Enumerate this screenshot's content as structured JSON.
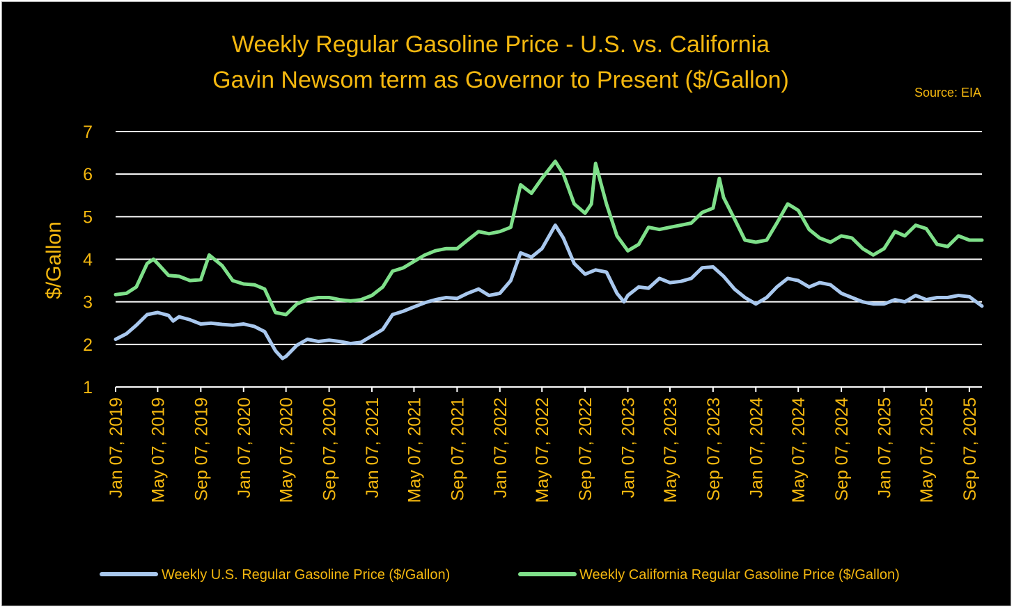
{
  "chart_data": {
    "type": "line",
    "title": "Weekly Regular Gasoline Price - U.S. vs. California",
    "subtitle": "Gavin Newsom term as Governor to Present ($/Gallon)",
    "source": "Source: EIA",
    "ylabel": "$/Gallon",
    "xlabel": "",
    "ylim": [
      1,
      7
    ],
    "yticks": [
      "1",
      "2",
      "3",
      "4",
      "5",
      "6",
      "7"
    ],
    "x_range": [
      "2019-01-07",
      "2025-10-13"
    ],
    "xtick_dates": [
      "2019-01-07",
      "2019-05-07",
      "2019-09-07",
      "2020-01-07",
      "2020-05-07",
      "2020-09-07",
      "2021-01-07",
      "2021-05-07",
      "2021-09-07",
      "2022-01-07",
      "2022-05-07",
      "2022-09-07",
      "2023-01-07",
      "2023-05-07",
      "2023-09-07",
      "2024-01-07",
      "2024-05-07",
      "2024-09-07",
      "2025-01-07",
      "2025-05-07",
      "2025-09-07"
    ],
    "xtick_labels": [
      "Jan 07, 2019",
      "May 07, 2019",
      "Sep 07, 2019",
      "Jan 07, 2020",
      "May 07, 2020",
      "Sep 07, 2020",
      "Jan 07, 2021",
      "May 07, 2021",
      "Sep 07, 2021",
      "Jan 07, 2022",
      "May 07, 2022",
      "Sep 07, 2022",
      "Jan 07, 2023",
      "May 07, 2023",
      "Sep 07, 2023",
      "Jan 07, 2024",
      "May 07, 2024",
      "Sep 07, 2024",
      "Jan 07, 2025",
      "May 07, 2025",
      "Sep 07, 2025"
    ],
    "grid": true,
    "legend_position": "bottom",
    "series": [
      {
        "name": "Weekly U.S. Regular Gasoline Price  ($/Gallon)",
        "color": "#A9C8EE",
        "points": [
          [
            "2019-01-07",
            2.12
          ],
          [
            "2019-02-07",
            2.25
          ],
          [
            "2019-03-07",
            2.45
          ],
          [
            "2019-04-07",
            2.7
          ],
          [
            "2019-05-07",
            2.75
          ],
          [
            "2019-06-07",
            2.68
          ],
          [
            "2019-06-20",
            2.55
          ],
          [
            "2019-07-07",
            2.65
          ],
          [
            "2019-08-07",
            2.58
          ],
          [
            "2019-09-07",
            2.48
          ],
          [
            "2019-10-07",
            2.5
          ],
          [
            "2019-11-07",
            2.47
          ],
          [
            "2019-12-07",
            2.45
          ],
          [
            "2020-01-07",
            2.48
          ],
          [
            "2020-02-07",
            2.42
          ],
          [
            "2020-03-07",
            2.3
          ],
          [
            "2020-04-07",
            1.85
          ],
          [
            "2020-04-27",
            1.67
          ],
          [
            "2020-05-07",
            1.72
          ],
          [
            "2020-06-07",
            1.98
          ],
          [
            "2020-07-07",
            2.12
          ],
          [
            "2020-08-07",
            2.07
          ],
          [
            "2020-09-07",
            2.1
          ],
          [
            "2020-10-07",
            2.07
          ],
          [
            "2020-11-07",
            2.02
          ],
          [
            "2020-12-07",
            2.05
          ],
          [
            "2021-01-07",
            2.2
          ],
          [
            "2021-02-07",
            2.35
          ],
          [
            "2021-03-07",
            2.7
          ],
          [
            "2021-04-07",
            2.78
          ],
          [
            "2021-05-07",
            2.88
          ],
          [
            "2021-06-07",
            2.98
          ],
          [
            "2021-07-07",
            3.05
          ],
          [
            "2021-08-07",
            3.1
          ],
          [
            "2021-09-07",
            3.08
          ],
          [
            "2021-10-07",
            3.2
          ],
          [
            "2021-11-07",
            3.3
          ],
          [
            "2021-12-07",
            3.15
          ],
          [
            "2022-01-07",
            3.2
          ],
          [
            "2022-02-07",
            3.5
          ],
          [
            "2022-03-07",
            4.15
          ],
          [
            "2022-04-07",
            4.05
          ],
          [
            "2022-05-07",
            4.25
          ],
          [
            "2022-06-14",
            4.8
          ],
          [
            "2022-07-07",
            4.5
          ],
          [
            "2022-08-07",
            3.9
          ],
          [
            "2022-09-07",
            3.65
          ],
          [
            "2022-10-07",
            3.75
          ],
          [
            "2022-11-07",
            3.7
          ],
          [
            "2022-12-07",
            3.2
          ],
          [
            "2022-12-27",
            3.0
          ],
          [
            "2023-01-07",
            3.15
          ],
          [
            "2023-02-07",
            3.35
          ],
          [
            "2023-03-07",
            3.32
          ],
          [
            "2023-04-07",
            3.55
          ],
          [
            "2023-05-07",
            3.45
          ],
          [
            "2023-06-07",
            3.48
          ],
          [
            "2023-07-07",
            3.55
          ],
          [
            "2023-08-07",
            3.8
          ],
          [
            "2023-09-07",
            3.82
          ],
          [
            "2023-10-07",
            3.6
          ],
          [
            "2023-11-07",
            3.3
          ],
          [
            "2023-12-07",
            3.1
          ],
          [
            "2024-01-07",
            2.95
          ],
          [
            "2024-02-07",
            3.1
          ],
          [
            "2024-03-07",
            3.35
          ],
          [
            "2024-04-07",
            3.55
          ],
          [
            "2024-05-07",
            3.5
          ],
          [
            "2024-06-07",
            3.35
          ],
          [
            "2024-07-07",
            3.45
          ],
          [
            "2024-08-07",
            3.4
          ],
          [
            "2024-09-07",
            3.2
          ],
          [
            "2024-10-07",
            3.1
          ],
          [
            "2024-11-07",
            3.0
          ],
          [
            "2024-12-07",
            2.95
          ],
          [
            "2025-01-07",
            2.95
          ],
          [
            "2025-02-07",
            3.05
          ],
          [
            "2025-03-07",
            3.0
          ],
          [
            "2025-04-07",
            3.15
          ],
          [
            "2025-05-07",
            3.05
          ],
          [
            "2025-06-07",
            3.1
          ],
          [
            "2025-07-07",
            3.1
          ],
          [
            "2025-08-07",
            3.15
          ],
          [
            "2025-09-07",
            3.12
          ],
          [
            "2025-10-13",
            2.9
          ]
        ]
      },
      {
        "name": "Weekly California Regular Gasoline Price ($/Gallon)",
        "color": "#7FE08A",
        "points": [
          [
            "2019-01-07",
            3.17
          ],
          [
            "2019-02-07",
            3.2
          ],
          [
            "2019-03-07",
            3.35
          ],
          [
            "2019-04-07",
            3.9
          ],
          [
            "2019-04-25",
            4.0
          ],
          [
            "2019-05-07",
            3.9
          ],
          [
            "2019-06-07",
            3.62
          ],
          [
            "2019-07-07",
            3.6
          ],
          [
            "2019-08-07",
            3.5
          ],
          [
            "2019-09-07",
            3.52
          ],
          [
            "2019-10-01",
            4.1
          ],
          [
            "2019-11-07",
            3.85
          ],
          [
            "2019-12-07",
            3.5
          ],
          [
            "2020-01-07",
            3.42
          ],
          [
            "2020-02-07",
            3.4
          ],
          [
            "2020-03-07",
            3.3
          ],
          [
            "2020-04-07",
            2.75
          ],
          [
            "2020-05-07",
            2.7
          ],
          [
            "2020-06-07",
            2.95
          ],
          [
            "2020-07-07",
            3.05
          ],
          [
            "2020-08-07",
            3.1
          ],
          [
            "2020-09-07",
            3.1
          ],
          [
            "2020-10-07",
            3.05
          ],
          [
            "2020-11-07",
            3.02
          ],
          [
            "2020-12-07",
            3.05
          ],
          [
            "2021-01-07",
            3.15
          ],
          [
            "2021-02-07",
            3.35
          ],
          [
            "2021-03-07",
            3.72
          ],
          [
            "2021-04-07",
            3.8
          ],
          [
            "2021-05-07",
            3.95
          ],
          [
            "2021-06-07",
            4.1
          ],
          [
            "2021-07-07",
            4.2
          ],
          [
            "2021-08-07",
            4.25
          ],
          [
            "2021-09-07",
            4.25
          ],
          [
            "2021-10-07",
            4.45
          ],
          [
            "2021-11-07",
            4.65
          ],
          [
            "2021-12-07",
            4.6
          ],
          [
            "2022-01-07",
            4.65
          ],
          [
            "2022-02-07",
            4.75
          ],
          [
            "2022-03-07",
            5.75
          ],
          [
            "2022-04-07",
            5.55
          ],
          [
            "2022-05-07",
            5.9
          ],
          [
            "2022-06-14",
            6.3
          ],
          [
            "2022-07-07",
            6.0
          ],
          [
            "2022-08-07",
            5.3
          ],
          [
            "2022-09-07",
            5.08
          ],
          [
            "2022-09-25",
            5.3
          ],
          [
            "2022-10-07",
            6.25
          ],
          [
            "2022-11-07",
            5.3
          ],
          [
            "2022-12-07",
            4.55
          ],
          [
            "2023-01-07",
            4.2
          ],
          [
            "2023-02-07",
            4.35
          ],
          [
            "2023-03-07",
            4.75
          ],
          [
            "2023-04-07",
            4.7
          ],
          [
            "2023-05-07",
            4.75
          ],
          [
            "2023-06-07",
            4.8
          ],
          [
            "2023-07-07",
            4.85
          ],
          [
            "2023-08-07",
            5.1
          ],
          [
            "2023-09-07",
            5.2
          ],
          [
            "2023-09-25",
            5.9
          ],
          [
            "2023-10-07",
            5.45
          ],
          [
            "2023-11-07",
            4.95
          ],
          [
            "2023-12-07",
            4.45
          ],
          [
            "2024-01-07",
            4.4
          ],
          [
            "2024-02-07",
            4.45
          ],
          [
            "2024-03-07",
            4.85
          ],
          [
            "2024-04-07",
            5.3
          ],
          [
            "2024-05-07",
            5.15
          ],
          [
            "2024-06-07",
            4.7
          ],
          [
            "2024-07-07",
            4.5
          ],
          [
            "2024-08-07",
            4.4
          ],
          [
            "2024-09-07",
            4.55
          ],
          [
            "2024-10-07",
            4.5
          ],
          [
            "2024-11-07",
            4.25
          ],
          [
            "2024-12-07",
            4.1
          ],
          [
            "2025-01-07",
            4.25
          ],
          [
            "2025-02-07",
            4.65
          ],
          [
            "2025-03-07",
            4.55
          ],
          [
            "2025-04-07",
            4.8
          ],
          [
            "2025-05-07",
            4.72
          ],
          [
            "2025-06-07",
            4.35
          ],
          [
            "2025-07-07",
            4.3
          ],
          [
            "2025-08-07",
            4.55
          ],
          [
            "2025-09-07",
            4.45
          ],
          [
            "2025-10-13",
            4.45
          ]
        ]
      }
    ]
  }
}
